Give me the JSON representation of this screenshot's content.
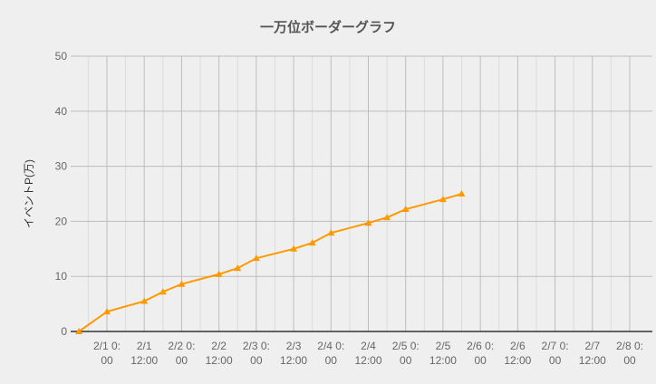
{
  "chart_data": {
    "type": "line",
    "title": "一万位ボーダーグラフ",
    "ylabel": "イベントP(万)",
    "xlabel": "",
    "ylim": [
      0,
      50
    ],
    "yticks": [
      0,
      10,
      20,
      30,
      40,
      50
    ],
    "xlim": [
      "1/31 15:00",
      "2/8 2:00"
    ],
    "xticks": [
      {
        "t": "2/1 0:00",
        "label": [
          "2/1 0:",
          "00"
        ]
      },
      {
        "t": "2/1 12:00",
        "label": [
          "2/1",
          "12:00"
        ]
      },
      {
        "t": "2/2 0:00",
        "label": [
          "2/2 0:",
          "00"
        ]
      },
      {
        "t": "2/2 12:00",
        "label": [
          "2/2",
          "12:00"
        ]
      },
      {
        "t": "2/3 0:00",
        "label": [
          "2/3 0:",
          "00"
        ]
      },
      {
        "t": "2/3 12:00",
        "label": [
          "2/3",
          "12:00"
        ]
      },
      {
        "t": "2/4 0:00",
        "label": [
          "2/4 0:",
          "00"
        ]
      },
      {
        "t": "2/4 12:00",
        "label": [
          "2/4",
          "12:00"
        ]
      },
      {
        "t": "2/5 0:00",
        "label": [
          "2/5 0:",
          "00"
        ]
      },
      {
        "t": "2/5 12:00",
        "label": [
          "2/5",
          "12:00"
        ]
      },
      {
        "t": "2/6 0:00",
        "label": [
          "2/6 0:",
          "00"
        ]
      },
      {
        "t": "2/6 12:00",
        "label": [
          "2/6",
          "12:00"
        ]
      },
      {
        "t": "2/7 0:00",
        "label": [
          "2/7 0:",
          "00"
        ]
      },
      {
        "t": "2/7 12:00",
        "label": [
          "2/7",
          "12:00"
        ]
      },
      {
        "t": "2/8 0:00",
        "label": [
          "2/8 0:",
          "00"
        ]
      }
    ],
    "grid": true,
    "series": [
      {
        "color": "#ff9900",
        "marker": "triangle",
        "points": [
          {
            "x": "1/31 15:00",
            "y": 0
          },
          {
            "x": "2/1 0:00",
            "y": 3.6
          },
          {
            "x": "2/1 12:00",
            "y": 5.5
          },
          {
            "x": "2/1 18:00",
            "y": 7.2
          },
          {
            "x": "2/2 0:00",
            "y": 8.6
          },
          {
            "x": "2/2 12:00",
            "y": 10.4
          },
          {
            "x": "2/2 18:00",
            "y": 11.5
          },
          {
            "x": "2/3 0:00",
            "y": 13.3
          },
          {
            "x": "2/3 12:00",
            "y": 15.0
          },
          {
            "x": "2/3 18:00",
            "y": 16.1
          },
          {
            "x": "2/4 0:00",
            "y": 17.9
          },
          {
            "x": "2/4 12:00",
            "y": 19.7
          },
          {
            "x": "2/4 18:00",
            "y": 20.7
          },
          {
            "x": "2/5 0:00",
            "y": 22.2
          },
          {
            "x": "2/5 12:00",
            "y": 24.0
          },
          {
            "x": "2/5 18:00",
            "y": 25.0
          }
        ]
      }
    ]
  }
}
